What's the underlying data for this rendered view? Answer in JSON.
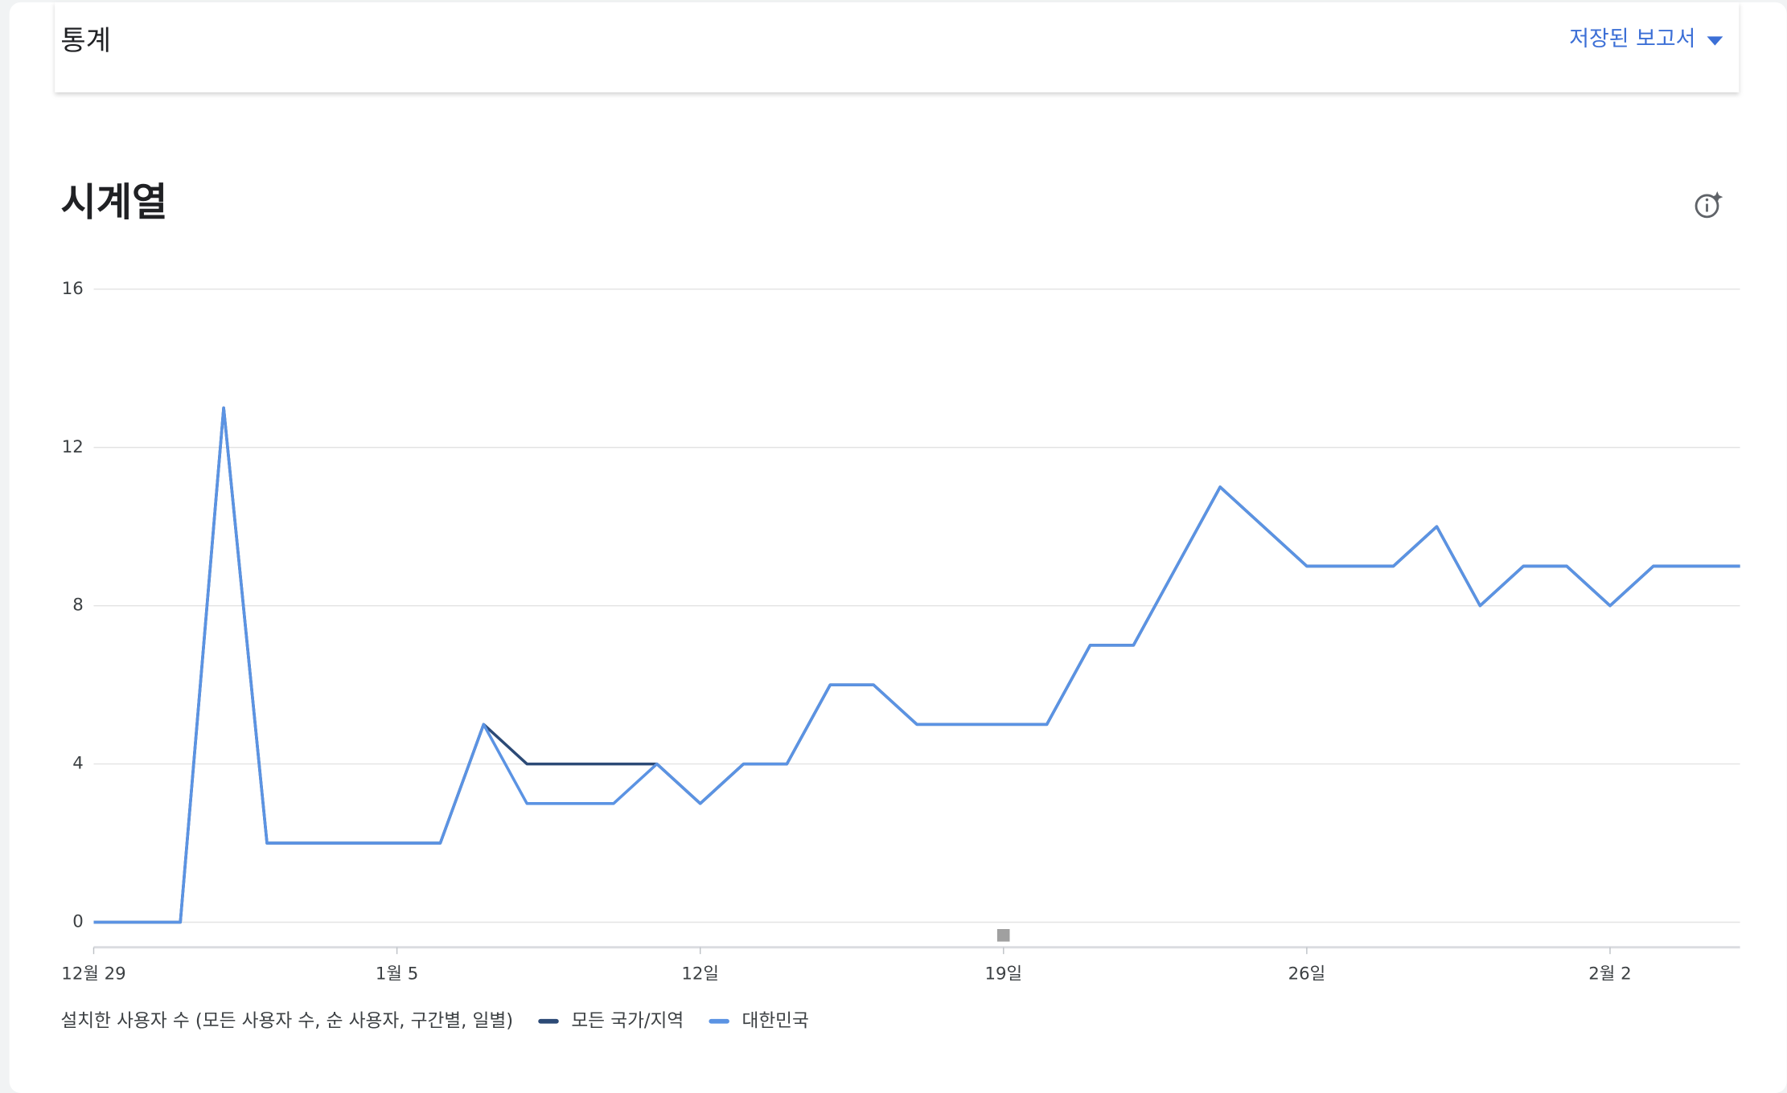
{
  "header": {
    "title": "통계",
    "saved_reports": "저장된 보고서"
  },
  "chart_data": {
    "type": "line",
    "title": "시계열",
    "categories": [
      "12월 29",
      null,
      null,
      null,
      null,
      null,
      null,
      "1월 5",
      null,
      null,
      null,
      null,
      null,
      null,
      "12일",
      null,
      null,
      null,
      null,
      null,
      null,
      "19일",
      null,
      null,
      null,
      null,
      null,
      null,
      "26일",
      null,
      null,
      null,
      null,
      null,
      null,
      "2월 2",
      null,
      null,
      null
    ],
    "ylim": [
      0,
      16
    ],
    "yticks": [
      0,
      4,
      8,
      12,
      16
    ],
    "grid": true,
    "legend_label": "설치한 사용자 수 (모든 사용자 수, 순 사용자, 구간별, 일별)",
    "series": [
      {
        "name": "모든 국가/지역",
        "color": "#2c4a76",
        "values": [
          0,
          0,
          0,
          13,
          2,
          2,
          2,
          2,
          2,
          5,
          4,
          4,
          4,
          4,
          3,
          4,
          4,
          6,
          6,
          5,
          5,
          5,
          5,
          7,
          7,
          9,
          11,
          10,
          9,
          9,
          9,
          10,
          8,
          9,
          9,
          8,
          9,
          9,
          9
        ]
      },
      {
        "name": "대한민국",
        "color": "#5b93e3",
        "values": [
          0,
          0,
          0,
          13,
          2,
          2,
          2,
          2,
          2,
          5,
          3,
          3,
          3,
          4,
          3,
          4,
          4,
          6,
          6,
          5,
          5,
          5,
          5,
          7,
          7,
          9,
          11,
          10,
          9,
          9,
          9,
          10,
          8,
          9,
          9,
          8,
          9,
          9,
          9
        ]
      }
    ]
  }
}
